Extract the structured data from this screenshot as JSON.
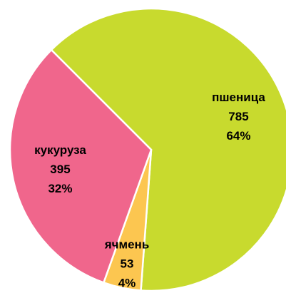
{
  "chart_data": {
    "type": "pie",
    "categories": [
      "пшеница",
      "ячмень",
      "кукуруза"
    ],
    "values": [
      785,
      53,
      395
    ],
    "percent_labels": [
      "64%",
      "4%",
      "32%"
    ],
    "colors": [
      "#c8da2e",
      "#fcc650",
      "#f0668c"
    ]
  }
}
